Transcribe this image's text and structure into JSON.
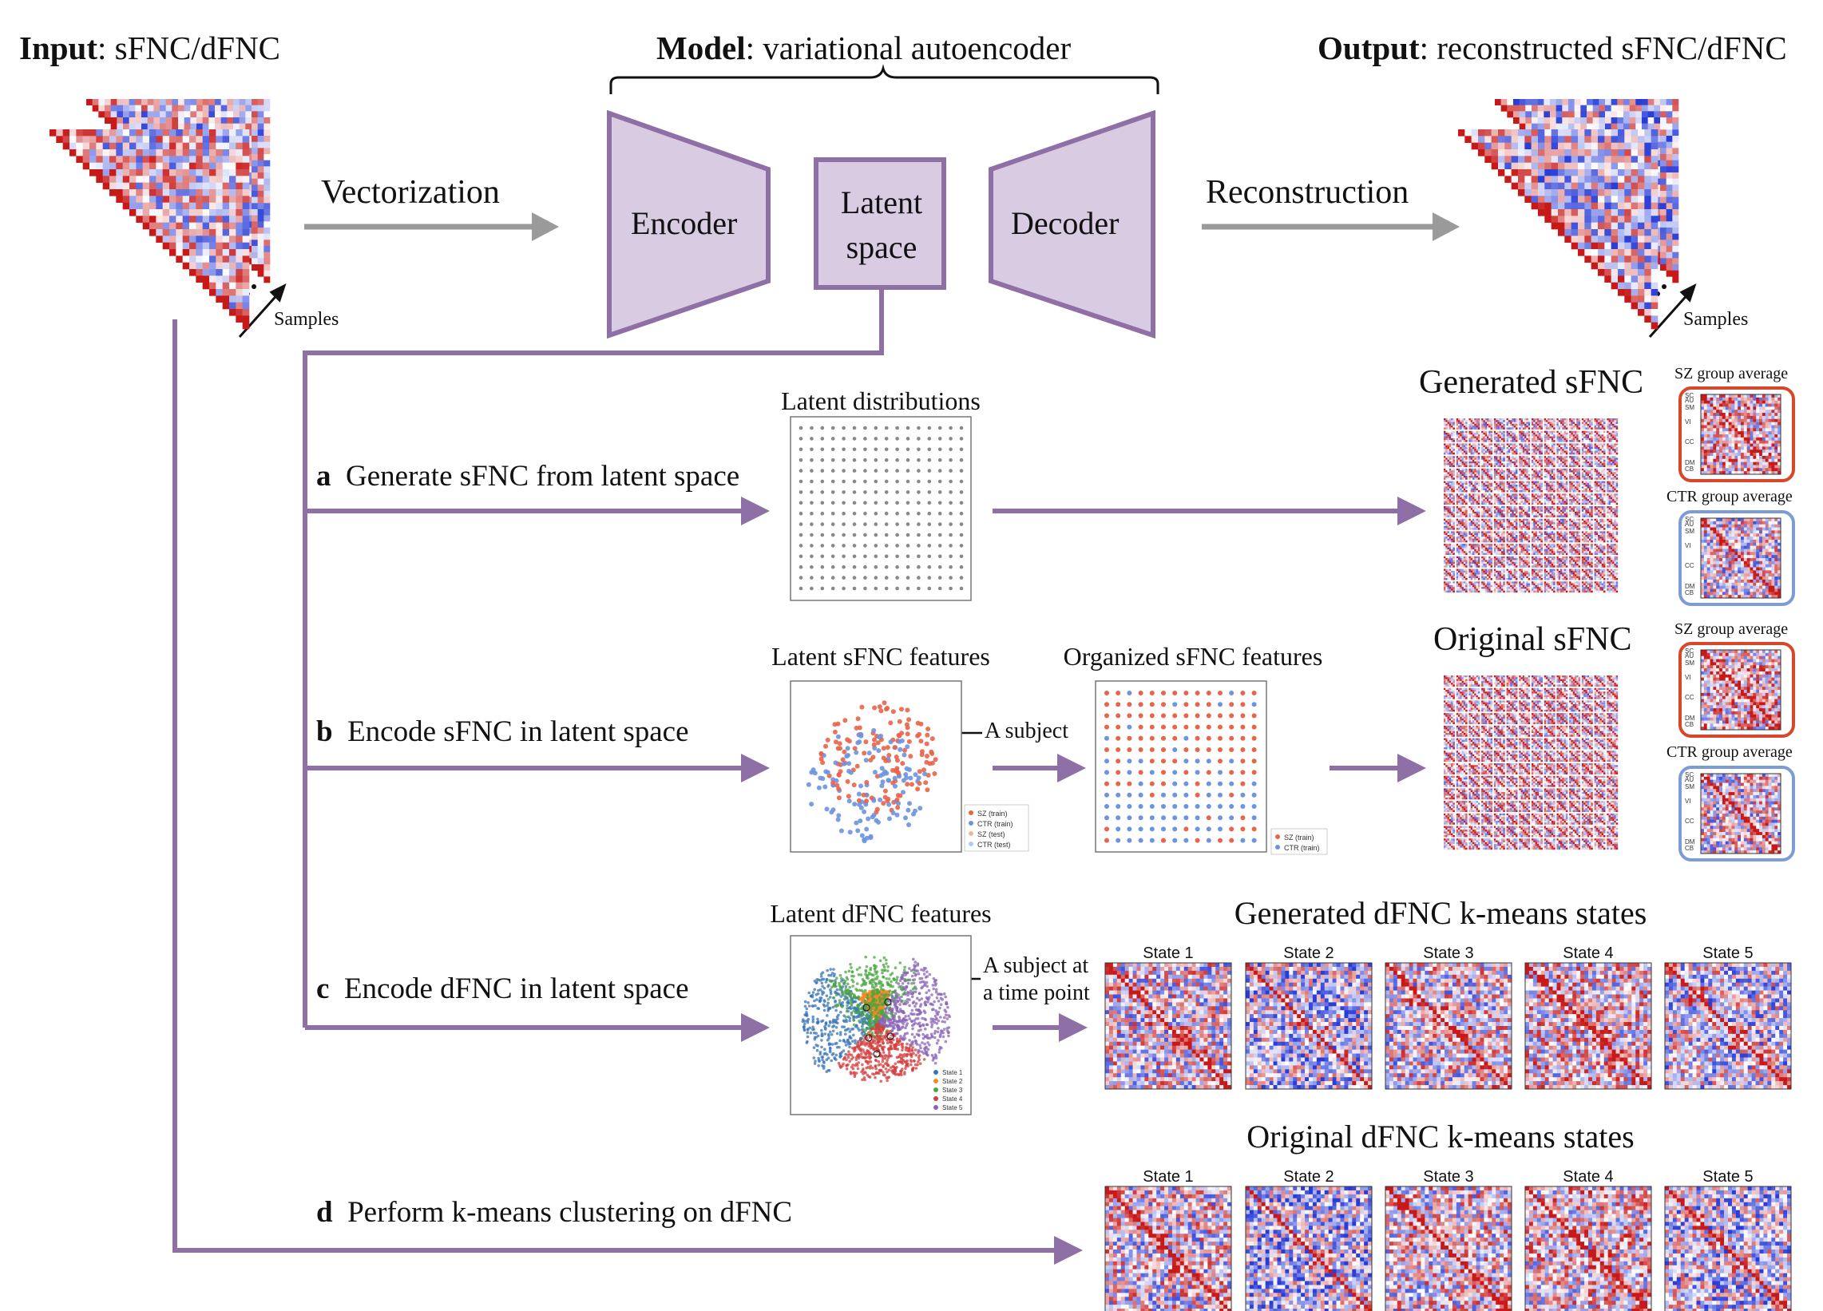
{
  "header": {
    "input_bold": "Input",
    "input_rest": ": sFNC/dFNC",
    "model_bold": "Model",
    "model_rest": ": variational autoencoder",
    "output_bold": "Output",
    "output_rest": ": reconstructed sFNC/dFNC"
  },
  "pipeline": {
    "vectorization": "Vectorization",
    "encoder": "Encoder",
    "latent_line1": "Latent",
    "latent_line2": "space",
    "decoder": "Decoder",
    "reconstruction": "Reconstruction",
    "samples_in": "Samples",
    "samples_out": "Samples"
  },
  "sections": {
    "a_letter": "a",
    "a_text": "Generate sFNC from latent space",
    "b_letter": "b",
    "b_text": "Encode sFNC in latent space",
    "c_letter": "c",
    "c_text": "Encode dFNC in latent space",
    "d_letter": "d",
    "d_text": "Perform k-means clustering on dFNC"
  },
  "panels": {
    "latent_distributions": "Latent distributions",
    "latent_sfnc_features": "Latent sFNC features",
    "organized_sfnc_features": "Organized sFNC features",
    "latent_dfnc_features": "Latent dFNC features",
    "a_subject": "A subject",
    "a_subject_time_1": "A subject at",
    "a_subject_time_2": "a time point",
    "generated_sfnc": "Generated sFNC",
    "original_sfnc": "Original sFNC",
    "sz_group_average": "SZ group average",
    "ctr_group_average": "CTR group average",
    "generated_dfnc_states": "Generated dFNC k-means states",
    "original_dfnc_states": "Original dFNC k-means states"
  },
  "legends": {
    "scatter_b": [
      "SZ (train)",
      "CTR (train)",
      "SZ (test)",
      "CTR (test)"
    ],
    "organized_b": [
      "SZ (train)",
      "CTR (train)"
    ],
    "scatter_c": [
      "State 1",
      "State 2",
      "State 3",
      "State 4",
      "State 5"
    ]
  },
  "network_labels": [
    "SC",
    "AU",
    "SM",
    "VI",
    "CC",
    "DM",
    "CB"
  ],
  "states": [
    "State 1",
    "State 2",
    "State 3",
    "State 4",
    "State 5"
  ],
  "colors": {
    "purple": "#8e6fa6",
    "purple_fill": "#d8cbe2",
    "arrow_gray": "#9a9a9a",
    "red": "#c0392b",
    "blue": "#3b4fd1",
    "sz_border": "#d9472b",
    "ctr_border": "#7d9bd6",
    "point_sz": "#e8644a",
    "point_ctr": "#6d94e0",
    "state_colors": [
      "#3a74b5",
      "#f08a24",
      "#4aa640",
      "#d43d3d",
      "#8a63b8"
    ]
  }
}
